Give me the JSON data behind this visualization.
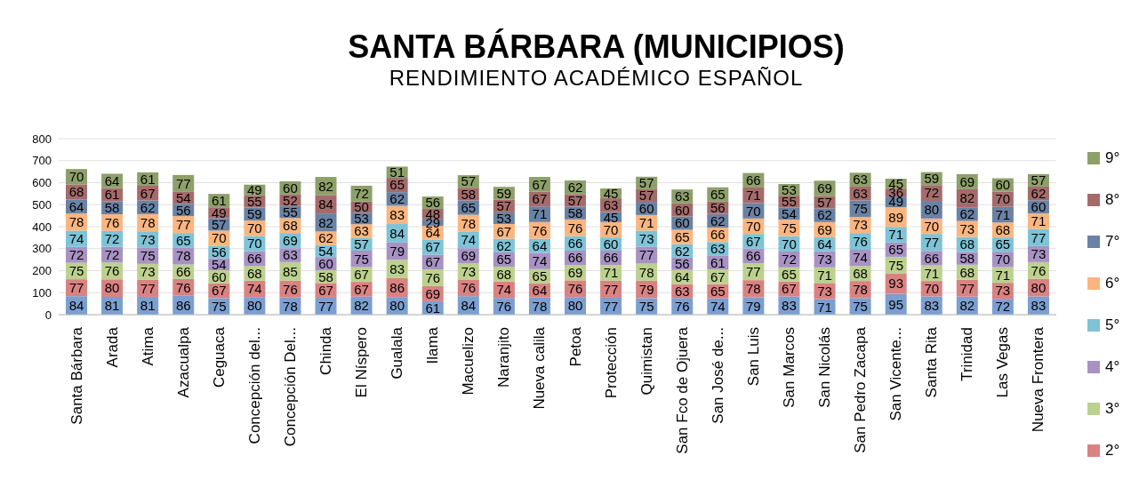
{
  "chart_data": {
    "type": "bar",
    "stacked": true,
    "title": "SANTA BÁRBARA (MUNICIPIOS)",
    "subtitle": "RENDIMIENTO ACADÉMICO ESPAÑOL",
    "categories": [
      "Santa Bárbara",
      "Arada",
      "Atima",
      "Azacualpa",
      "Ceguaca",
      "Concepción del...",
      "Concepción Del...",
      "Chinda",
      "El Níspero",
      "Gualala",
      "Ilama",
      "Macuelizo",
      "Naranjito",
      "Nueva calila",
      "Petoa",
      "Protección",
      "Quimistan",
      "San Fco de Ojuera",
      "San José de...",
      "San Luis",
      "San Marcos",
      "San Nicolás",
      "San Pedro Zacapa",
      "San Vicente...",
      "Santa Rita",
      "Trinidad",
      "Las Vegas",
      "Nueva Frontera"
    ],
    "series": [
      {
        "color": "#7b9fd0",
        "values": [
          84,
          81,
          81,
          86,
          75,
          80,
          78,
          77,
          82,
          80,
          61,
          84,
          76,
          78,
          80,
          77,
          75,
          76,
          74,
          79,
          83,
          71,
          75,
          95,
          83,
          82,
          72,
          83
        ]
      },
      {
        "name": "2°",
        "color": "#d98282",
        "values": [
          77,
          80,
          77,
          76,
          67,
          74,
          76,
          67,
          67,
          86,
          69,
          76,
          74,
          64,
          76,
          77,
          79,
          63,
          65,
          78,
          67,
          73,
          78,
          93,
          70,
          77,
          73,
          80
        ]
      },
      {
        "name": "3°",
        "color": "#bcd18e",
        "values": [
          75,
          76,
          73,
          66,
          60,
          68,
          85,
          58,
          67,
          83,
          76,
          73,
          68,
          65,
          69,
          71,
          78,
          64,
          67,
          77,
          65,
          71,
          68,
          75,
          71,
          68,
          71,
          76
        ]
      },
      {
        "name": "4°",
        "color": "#a892c3",
        "values": [
          72,
          72,
          75,
          78,
          54,
          66,
          63,
          60,
          75,
          79,
          67,
          69,
          65,
          74,
          66,
          66,
          77,
          56,
          61,
          66,
          72,
          73,
          74,
          65,
          66,
          58,
          70,
          73
        ]
      },
      {
        "name": "5°",
        "color": "#7ec3d6",
        "values": [
          74,
          72,
          73,
          65,
          56,
          70,
          69,
          54,
          57,
          84,
          67,
          74,
          62,
          64,
          66,
          60,
          73,
          62,
          63,
          67,
          70,
          64,
          76,
          71,
          77,
          68,
          65,
          77
        ]
      },
      {
        "name": "6°",
        "color": "#fbb57f",
        "values": [
          78,
          76,
          78,
          77,
          70,
          70,
          68,
          62,
          63,
          83,
          64,
          78,
          67,
          76,
          76,
          70,
          71,
          65,
          66,
          70,
          75,
          69,
          73,
          89,
          70,
          73,
          68,
          71
        ]
      },
      {
        "name": "7°",
        "color": "#6a82a3",
        "values": [
          64,
          58,
          62,
          56,
          57,
          59,
          55,
          82,
          53,
          62,
          29,
          65,
          53,
          71,
          58,
          45,
          60,
          60,
          62,
          70,
          54,
          62,
          75,
          49,
          80,
          62,
          71,
          60
        ]
      },
      {
        "name": "8°",
        "color": "#a56b6b",
        "values": [
          68,
          61,
          67,
          54,
          49,
          55,
          52,
          84,
          50,
          65,
          48,
          58,
          57,
          67,
          57,
          63,
          57,
          60,
          56,
          71,
          55,
          57,
          63,
          36,
          72,
          82,
          70,
          62
        ]
      },
      {
        "name": "9°",
        "color": "#8da06a",
        "values": [
          70,
          64,
          61,
          77,
          61,
          49,
          60,
          82,
          72,
          51,
          56,
          57,
          59,
          67,
          62,
          45,
          57,
          63,
          65,
          66,
          53,
          69,
          63,
          45,
          59,
          69,
          60,
          57
        ]
      }
    ],
    "ylim": [
      0,
      800
    ],
    "yticks": [
      0,
      100,
      200,
      300,
      400,
      500,
      600,
      700,
      800
    ],
    "grid": "y",
    "legend": "right",
    "data_labels": true
  }
}
